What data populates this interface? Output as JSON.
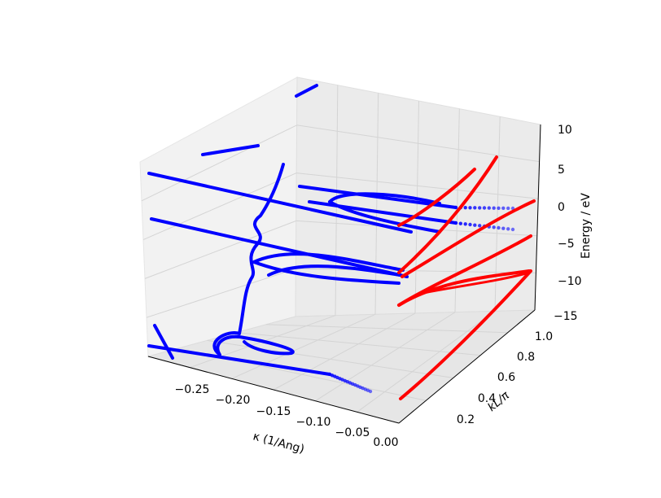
{
  "chart_data": {
    "type": "scatter-3d",
    "title": "",
    "axes": {
      "x": {
        "label": "κ (1/Ang)",
        "range": [
          -0.28,
          0.0
        ],
        "ticks": [
          "−0.25",
          "−0.20",
          "−0.15",
          "−0.10",
          "−0.05",
          "0.00"
        ],
        "tick_values": [
          -0.25,
          -0.2,
          -0.15,
          -0.1,
          -0.05,
          0.0
        ]
      },
      "y": {
        "label": "kL/π",
        "range": [
          0.0,
          1.0
        ],
        "ticks": [
          "0.2",
          "0.4",
          "0.6",
          "0.8",
          "1.0"
        ],
        "tick_values": [
          0.2,
          0.4,
          0.6,
          0.8,
          1.0
        ]
      },
      "z": {
        "label": "Energy / eV",
        "range": [
          -15,
          10
        ],
        "ticks": [
          "10",
          "5",
          "0",
          "−5",
          "−10",
          "−15"
        ],
        "tick_values": [
          10,
          5,
          0,
          -5,
          -10,
          -15
        ]
      }
    },
    "grid": true,
    "series": [
      {
        "color": "#0000ff",
        "description": "blue point curves in the kappa–energy plane"
      },
      {
        "color": "#ff0000",
        "description": "red point curves in the kL/pi–energy plane"
      }
    ]
  }
}
